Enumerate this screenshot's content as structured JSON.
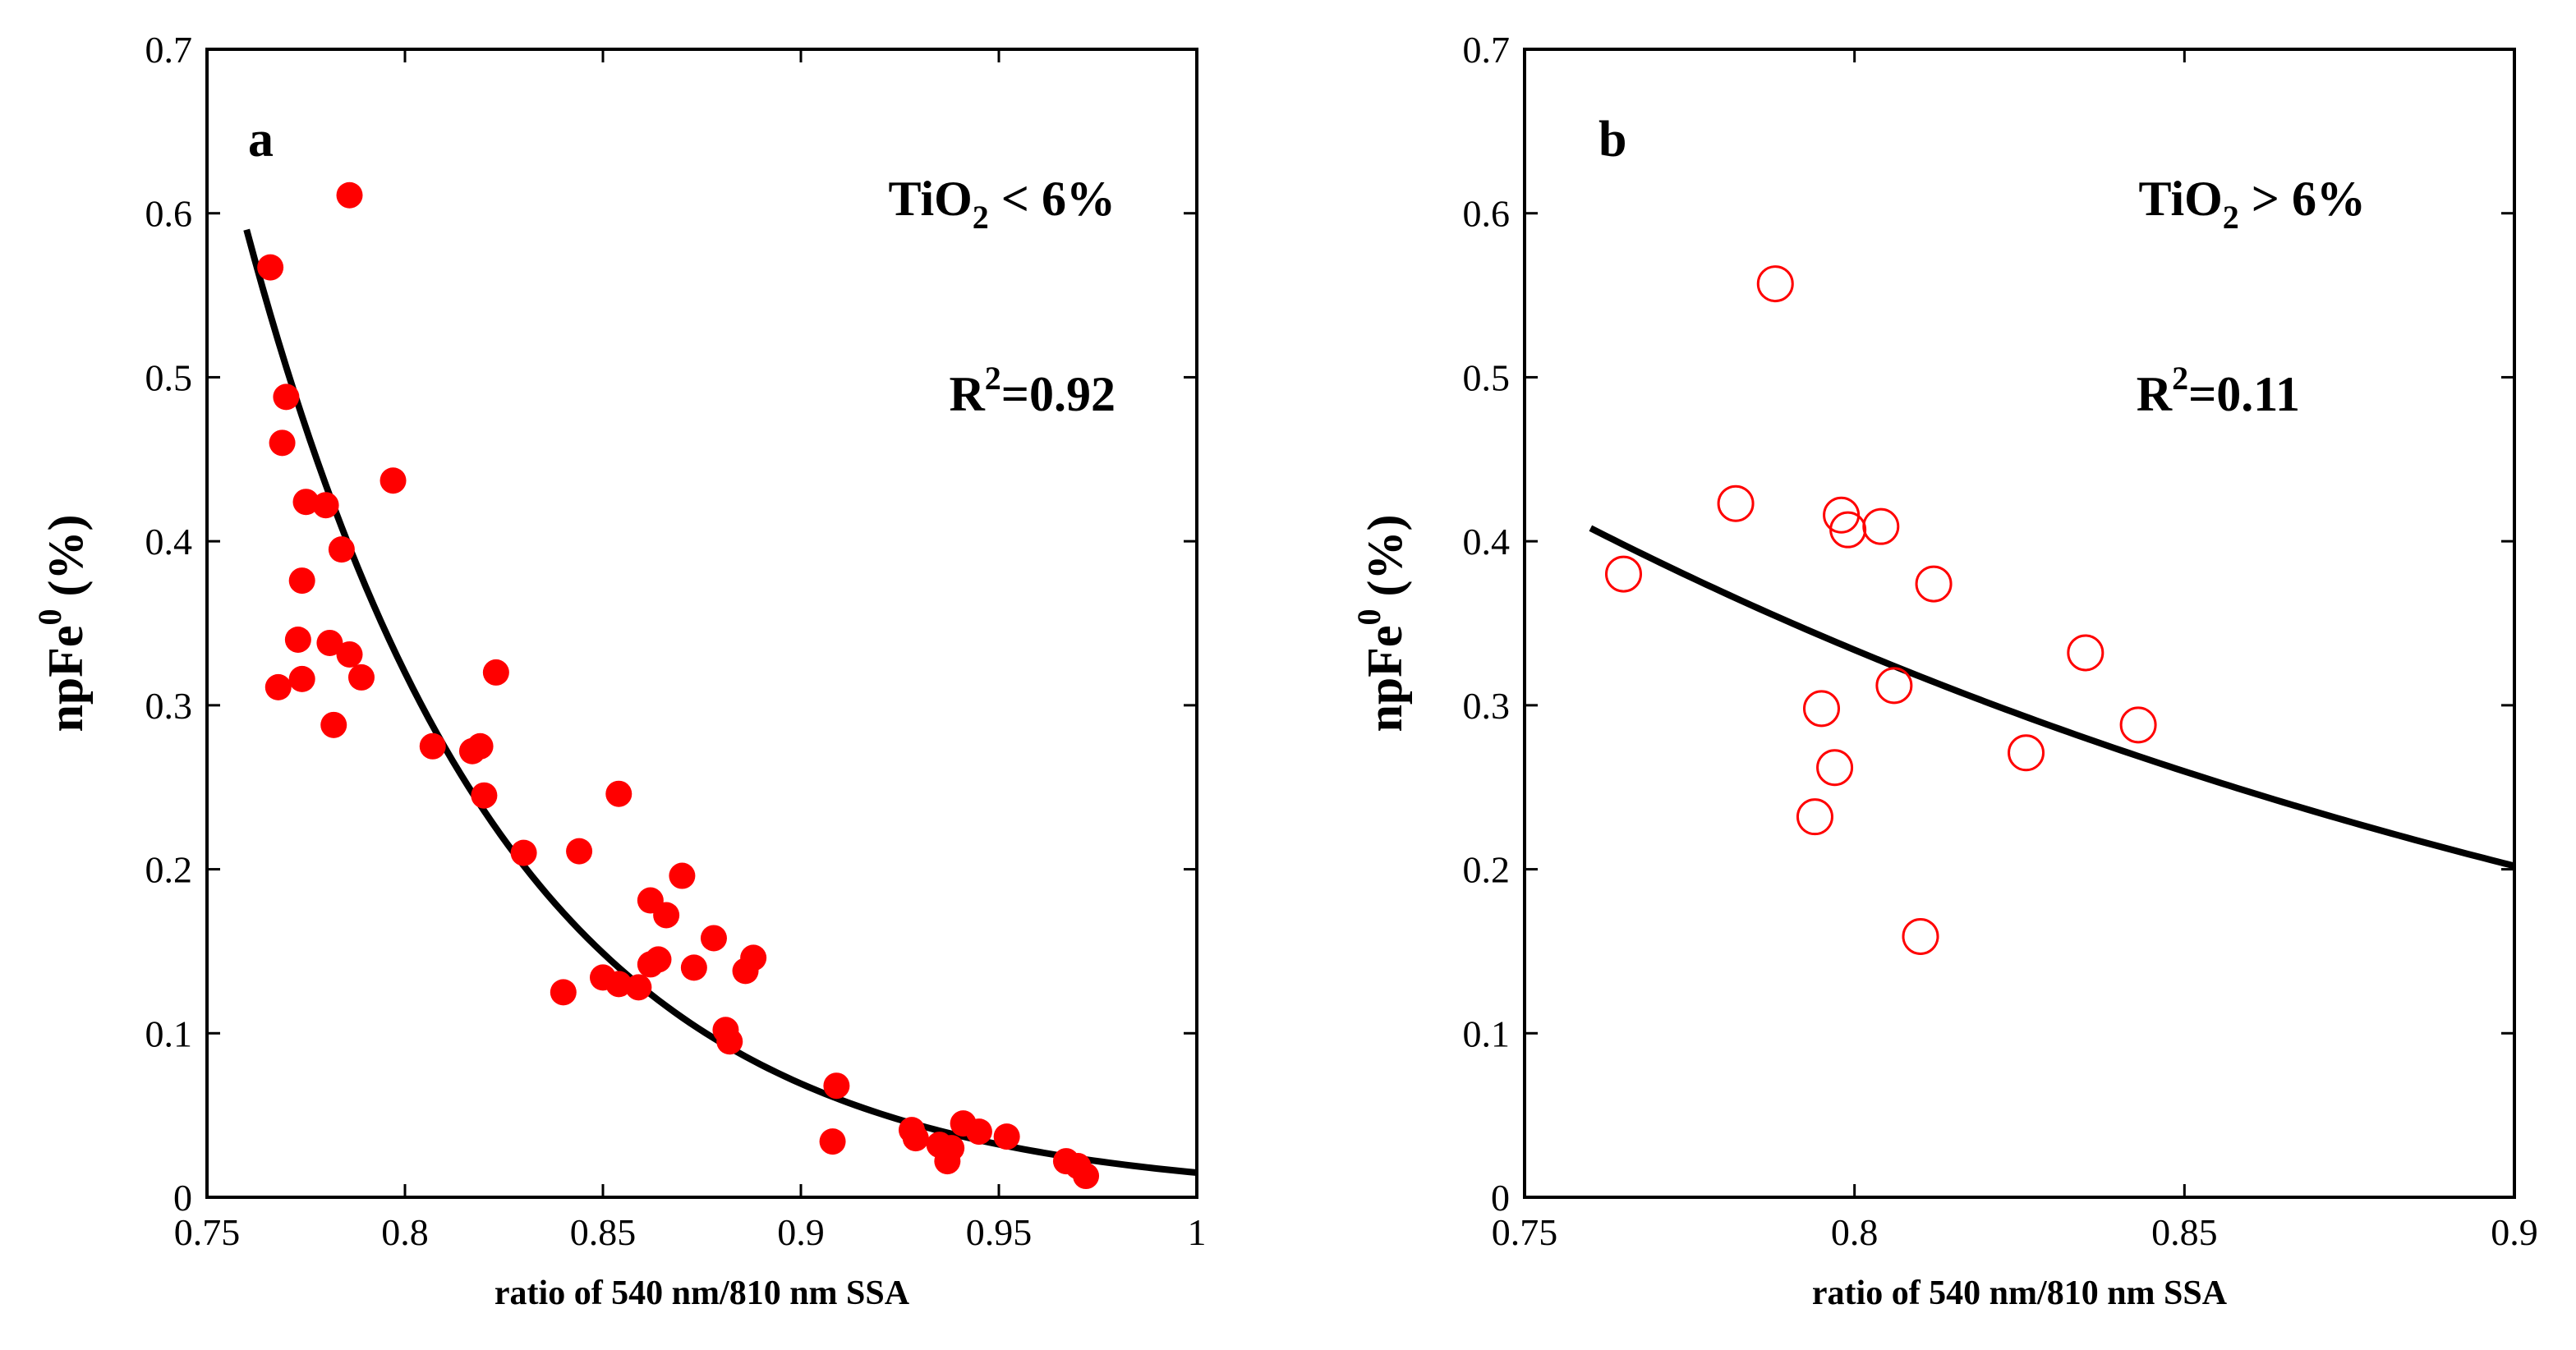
{
  "chart_data": [
    {
      "type": "scatter",
      "panel_label": "a",
      "annotation": {
        "prefix": "TiO",
        "sub": "2",
        "suffix": " < 6%"
      },
      "r2": {
        "base": "R",
        "sup": "2",
        "value": "=0.92"
      },
      "xlabel": "ratio of 540 nm/810 nm SSA",
      "ylabel": {
        "base": "npFe",
        "sup": "0",
        "suffix": " (%)"
      },
      "xlim": [
        0.75,
        1.0
      ],
      "ylim": [
        0,
        0.7
      ],
      "xticks": [
        0.75,
        0.8,
        0.85,
        0.9,
        0.95,
        1.0
      ],
      "xtick_labels": [
        "0.75",
        "0.8",
        "0.85",
        "0.9",
        "0.95",
        "1"
      ],
      "yticks": [
        0,
        0.1,
        0.2,
        0.3,
        0.4,
        0.5,
        0.6,
        0.7
      ],
      "ytick_labels": [
        "0",
        "0.1",
        "0.2",
        "0.3",
        "0.4",
        "0.5",
        "0.6",
        "0.7"
      ],
      "marker": "filled-circle",
      "marker_color": "#ff0000",
      "fit": {
        "model": "exponential",
        "a": 0.59,
        "b": -15.3,
        "x0": 0.76,
        "x_from": 0.76,
        "x_to": 1.0
      },
      "points": [
        [
          0.766,
          0.567
        ],
        [
          0.786,
          0.611
        ],
        [
          0.77,
          0.488
        ],
        [
          0.769,
          0.46
        ],
        [
          0.775,
          0.424
        ],
        [
          0.78,
          0.422
        ],
        [
          0.797,
          0.437
        ],
        [
          0.784,
          0.395
        ],
        [
          0.774,
          0.376
        ],
        [
          0.773,
          0.34
        ],
        [
          0.781,
          0.338
        ],
        [
          0.786,
          0.331
        ],
        [
          0.768,
          0.311
        ],
        [
          0.774,
          0.316
        ],
        [
          0.789,
          0.317
        ],
        [
          0.782,
          0.288
        ],
        [
          0.807,
          0.275
        ],
        [
          0.817,
          0.272
        ],
        [
          0.819,
          0.275
        ],
        [
          0.823,
          0.32
        ],
        [
          0.82,
          0.245
        ],
        [
          0.854,
          0.246
        ],
        [
          0.83,
          0.21
        ],
        [
          0.844,
          0.211
        ],
        [
          0.87,
          0.196
        ],
        [
          0.862,
          0.181
        ],
        [
          0.866,
          0.172
        ],
        [
          0.878,
          0.158
        ],
        [
          0.862,
          0.142
        ],
        [
          0.864,
          0.145
        ],
        [
          0.873,
          0.14
        ],
        [
          0.886,
          0.138
        ],
        [
          0.888,
          0.146
        ],
        [
          0.85,
          0.134
        ],
        [
          0.854,
          0.13
        ],
        [
          0.859,
          0.128
        ],
        [
          0.84,
          0.125
        ],
        [
          0.881,
          0.102
        ],
        [
          0.882,
          0.095
        ],
        [
          0.909,
          0.068
        ],
        [
          0.908,
          0.034
        ],
        [
          0.928,
          0.041
        ],
        [
          0.929,
          0.036
        ],
        [
          0.935,
          0.032
        ],
        [
          0.938,
          0.03
        ],
        [
          0.937,
          0.022
        ],
        [
          0.941,
          0.045
        ],
        [
          0.945,
          0.04
        ],
        [
          0.952,
          0.037
        ],
        [
          0.967,
          0.022
        ],
        [
          0.97,
          0.019
        ],
        [
          0.972,
          0.013
        ]
      ]
    },
    {
      "type": "scatter",
      "panel_label": "b",
      "annotation": {
        "prefix": "TiO",
        "sub": "2",
        "suffix": " > 6%"
      },
      "r2": {
        "base": "R",
        "sup": "2",
        "value": "=0.11"
      },
      "xlabel": "ratio of 540 nm/810 nm SSA",
      "ylabel": {
        "base": "npFe",
        "sup": "0",
        "suffix": " (%)"
      },
      "xlim": [
        0.75,
        0.9
      ],
      "ylim": [
        0,
        0.7
      ],
      "xticks": [
        0.75,
        0.8,
        0.85,
        0.9
      ],
      "xtick_labels": [
        "0.75",
        "0.8",
        "0.85",
        "0.9"
      ],
      "yticks": [
        0,
        0.1,
        0.2,
        0.3,
        0.4,
        0.5,
        0.6,
        0.7
      ],
      "ytick_labels": [
        "0",
        "0.1",
        "0.2",
        "0.3",
        "0.4",
        "0.5",
        "0.6",
        "0.7"
      ],
      "marker": "open-circle",
      "marker_color": "#ff0000",
      "fit": {
        "model": "exponential",
        "a": 0.408,
        "b": -5.02,
        "x0": 0.76,
        "x_from": 0.76,
        "x_to": 0.9
      },
      "points": [
        [
          0.788,
          0.557
        ],
        [
          0.765,
          0.38
        ],
        [
          0.782,
          0.423
        ],
        [
          0.798,
          0.416
        ],
        [
          0.799,
          0.407
        ],
        [
          0.804,
          0.409
        ],
        [
          0.812,
          0.374
        ],
        [
          0.806,
          0.312
        ],
        [
          0.835,
          0.332
        ],
        [
          0.843,
          0.288
        ],
        [
          0.826,
          0.271
        ],
        [
          0.795,
          0.298
        ],
        [
          0.797,
          0.262
        ],
        [
          0.794,
          0.232
        ],
        [
          0.81,
          0.159
        ]
      ]
    }
  ]
}
